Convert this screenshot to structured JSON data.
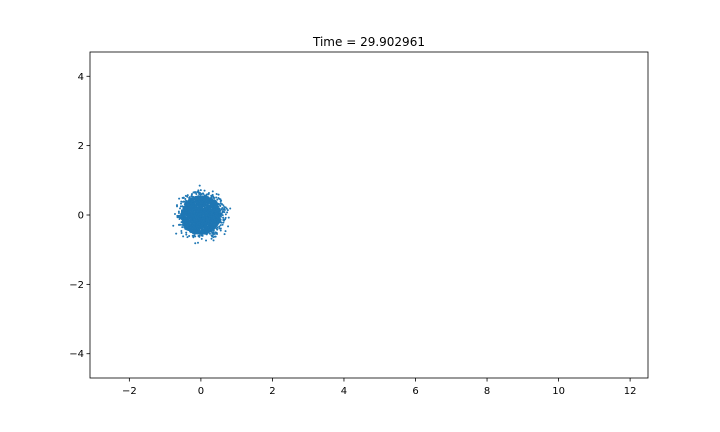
{
  "chart_data": {
    "type": "scatter",
    "title": "Time = 29.902961",
    "xlabel": "",
    "ylabel": "",
    "xlim": [
      -3.1,
      12.5
    ],
    "ylim": [
      -4.7,
      4.7
    ],
    "xticks": [
      -2,
      0,
      2,
      4,
      6,
      8,
      10,
      12
    ],
    "xtick_labels": [
      "−2",
      "0",
      "2",
      "4",
      "6",
      "8",
      "10",
      "12"
    ],
    "yticks": [
      -4,
      -2,
      0,
      2,
      4
    ],
    "ytick_labels": [
      "−4",
      "−2",
      "0",
      "2",
      "4"
    ],
    "grid": false,
    "legend": "none",
    "series": [
      {
        "color": "#1f77b4",
        "marker_size": 1,
        "cluster": {
          "center": [
            0.0,
            0.0
          ],
          "core_radius": 0.55,
          "outer_radius": 0.75,
          "core_points": 2400,
          "fringe_points": 220
        }
      }
    ]
  }
}
